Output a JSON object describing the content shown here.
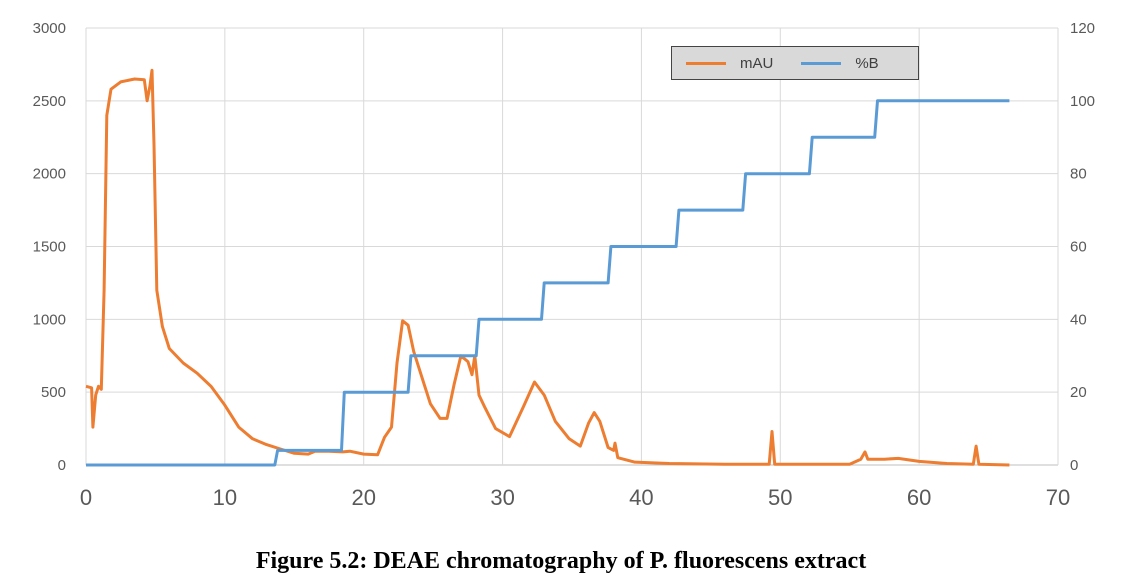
{
  "caption": "Figure 5.2: DEAE chromatography of P. fluorescens extract",
  "chart_data": {
    "type": "line",
    "title": "",
    "xlabel": "",
    "ylabel": "",
    "y2label": "",
    "xlim": [
      0,
      70
    ],
    "ylim": [
      0,
      3000
    ],
    "y2lim": [
      0,
      120
    ],
    "x_ticks": [
      "0",
      "10",
      "20",
      "30",
      "40",
      "50",
      "60",
      "70"
    ],
    "y_ticks": [
      "0",
      "500",
      "1000",
      "1500",
      "2000",
      "2500",
      "3000"
    ],
    "y2_ticks": [
      "0",
      "20",
      "40",
      "60",
      "80",
      "100",
      "120"
    ],
    "grid": true,
    "legend_position": "top-right",
    "series": [
      {
        "name": "mAU",
        "axis": "left",
        "color": "#ed7d31",
        "points": [
          [
            0,
            540
          ],
          [
            0.4,
            530
          ],
          [
            0.5,
            260
          ],
          [
            0.7,
            480
          ],
          [
            0.9,
            540
          ],
          [
            1.1,
            520
          ],
          [
            1.3,
            1200
          ],
          [
            1.5,
            2400
          ],
          [
            1.8,
            2580
          ],
          [
            2.5,
            2630
          ],
          [
            3.5,
            2650
          ],
          [
            4.2,
            2645
          ],
          [
            4.4,
            2500
          ],
          [
            4.6,
            2600
          ],
          [
            4.75,
            2710
          ],
          [
            4.9,
            2200
          ],
          [
            5.1,
            1200
          ],
          [
            5.5,
            950
          ],
          [
            6,
            800
          ],
          [
            7,
            700
          ],
          [
            8,
            630
          ],
          [
            9,
            540
          ],
          [
            10,
            410
          ],
          [
            11,
            260
          ],
          [
            12,
            180
          ],
          [
            13,
            140
          ],
          [
            14,
            110
          ],
          [
            15,
            80
          ],
          [
            16,
            75
          ],
          [
            16.5,
            95
          ],
          [
            17.5,
            95
          ],
          [
            18.5,
            90
          ],
          [
            19,
            95
          ],
          [
            20,
            75
          ],
          [
            21,
            70
          ],
          [
            21.5,
            190
          ],
          [
            22,
            260
          ],
          [
            22.4,
            700
          ],
          [
            22.8,
            990
          ],
          [
            23.2,
            960
          ],
          [
            23.6,
            780
          ],
          [
            24.2,
            600
          ],
          [
            24.8,
            420
          ],
          [
            25.5,
            320
          ],
          [
            26,
            320
          ],
          [
            26.5,
            550
          ],
          [
            27,
            750
          ],
          [
            27.5,
            710
          ],
          [
            27.8,
            620
          ],
          [
            28,
            750
          ],
          [
            28.3,
            480
          ],
          [
            28.7,
            400
          ],
          [
            29.5,
            250
          ],
          [
            30.5,
            195
          ],
          [
            31.5,
            400
          ],
          [
            32.3,
            570
          ],
          [
            33,
            480
          ],
          [
            33.8,
            300
          ],
          [
            34.8,
            180
          ],
          [
            35.6,
            130
          ],
          [
            36.2,
            290
          ],
          [
            36.6,
            360
          ],
          [
            37,
            300
          ],
          [
            37.6,
            120
          ],
          [
            38,
            100
          ],
          [
            38.1,
            150
          ],
          [
            38.3,
            50
          ],
          [
            39.5,
            20
          ],
          [
            42,
            10
          ],
          [
            46,
            5
          ],
          [
            49.2,
            5
          ],
          [
            49.4,
            230
          ],
          [
            49.6,
            5
          ],
          [
            55,
            5
          ],
          [
            55.8,
            40
          ],
          [
            56.1,
            90
          ],
          [
            56.3,
            40
          ],
          [
            57.5,
            40
          ],
          [
            58.5,
            45
          ],
          [
            60,
            25
          ],
          [
            62,
            10
          ],
          [
            63.9,
            5
          ],
          [
            64.1,
            130
          ],
          [
            64.3,
            5
          ],
          [
            66.5,
            0
          ]
        ]
      },
      {
        "name": "%B",
        "axis": "right",
        "color": "#5b9bd5",
        "points": [
          [
            0,
            0
          ],
          [
            13.6,
            0
          ],
          [
            13.8,
            4
          ],
          [
            18.4,
            4
          ],
          [
            18.6,
            20
          ],
          [
            23.2,
            20
          ],
          [
            23.4,
            30
          ],
          [
            28.1,
            30
          ],
          [
            28.3,
            40
          ],
          [
            32.8,
            40
          ],
          [
            33,
            50
          ],
          [
            37.6,
            50
          ],
          [
            37.8,
            60
          ],
          [
            42.5,
            60
          ],
          [
            42.7,
            70
          ],
          [
            47.3,
            70
          ],
          [
            47.5,
            80
          ],
          [
            52.1,
            80
          ],
          [
            52.3,
            90
          ],
          [
            56.8,
            90
          ],
          [
            57,
            100
          ],
          [
            66.5,
            100
          ]
        ]
      }
    ]
  }
}
